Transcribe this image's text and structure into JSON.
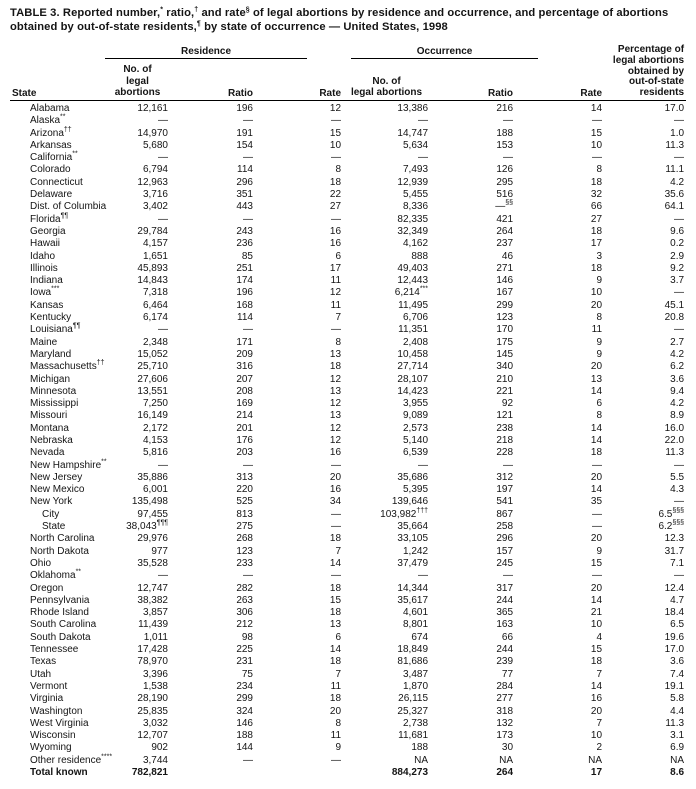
{
  "title": "TABLE 3. Reported number,^* ratio,^† and rate^§ of legal abortions by residence and occurrence, and percentage of abortions obtained by out-of-state residents,^¶ by state of occurrence — United States, 1998",
  "header": {
    "state": "State",
    "groups": [
      {
        "label": "Residence"
      },
      {
        "label": "Occurrence"
      }
    ],
    "sub": {
      "no_line1": "No. of",
      "no_line2": "legal abortions",
      "ratio": "Ratio",
      "rate": "Rate"
    },
    "pct": "Percentage of\nlegal abortions\nobtained by\nout-of-state\nresidents"
  },
  "rows": [
    {
      "state": "Alabama",
      "indent": false,
      "bold": false,
      "cells": [
        "12,161",
        "196",
        "12",
        "13,386",
        "216",
        "14",
        "17.0"
      ]
    },
    {
      "state": "Alaska^**",
      "indent": false,
      "bold": false,
      "cells": [
        "—",
        "—",
        "—",
        "—",
        "—",
        "—",
        "—"
      ]
    },
    {
      "state": "Arizona^††",
      "indent": false,
      "bold": false,
      "cells": [
        "14,970",
        "191",
        "15",
        "14,747",
        "188",
        "15",
        "1.0"
      ]
    },
    {
      "state": "Arkansas",
      "indent": false,
      "bold": false,
      "cells": [
        "5,680",
        "154",
        "10",
        "5,634",
        "153",
        "10",
        "11.3"
      ]
    },
    {
      "state": "California^**",
      "indent": false,
      "bold": false,
      "cells": [
        "—",
        "—",
        "—",
        "—",
        "—",
        "—",
        "—"
      ]
    },
    {
      "state": "Colorado",
      "indent": false,
      "bold": false,
      "cells": [
        "6,794",
        "114",
        "8",
        "7,493",
        "126",
        "8",
        "11.1"
      ]
    },
    {
      "state": "Connecticut",
      "indent": false,
      "bold": false,
      "cells": [
        "12,963",
        "296",
        "18",
        "12,939",
        "295",
        "18",
        "4.2"
      ]
    },
    {
      "state": "Delaware",
      "indent": false,
      "bold": false,
      "cells": [
        "3,716",
        "351",
        "22",
        "5,455",
        "516",
        "32",
        "35.6"
      ]
    },
    {
      "state": "Dist. of Columbia",
      "indent": false,
      "bold": false,
      "cells": [
        "3,402",
        "443",
        "27",
        "8,336",
        "—^§§",
        "66",
        "64.1"
      ]
    },
    {
      "state": "Florida^¶¶",
      "indent": false,
      "bold": false,
      "cells": [
        "—",
        "—",
        "—",
        "82,335",
        "421",
        "27",
        "—"
      ]
    },
    {
      "state": "Georgia",
      "indent": false,
      "bold": false,
      "cells": [
        "29,784",
        "243",
        "16",
        "32,349",
        "264",
        "18",
        "9.6"
      ]
    },
    {
      "state": "Hawaii",
      "indent": false,
      "bold": false,
      "cells": [
        "4,157",
        "236",
        "16",
        "4,162",
        "237",
        "17",
        "0.2"
      ]
    },
    {
      "state": "Idaho",
      "indent": false,
      "bold": false,
      "cells": [
        "1,651",
        "85",
        "6",
        "888",
        "46",
        "3",
        "2.9"
      ]
    },
    {
      "state": "Illinois",
      "indent": false,
      "bold": false,
      "cells": [
        "45,893",
        "251",
        "17",
        "49,403",
        "271",
        "18",
        "9.2"
      ]
    },
    {
      "state": "Indiana",
      "indent": false,
      "bold": false,
      "cells": [
        "14,843",
        "174",
        "11",
        "12,443",
        "146",
        "9",
        "3.7"
      ]
    },
    {
      "state": "Iowa^***",
      "indent": false,
      "bold": false,
      "cells": [
        "7,318",
        "196",
        "12",
        "6,214^***",
        "167",
        "10",
        "—"
      ]
    },
    {
      "state": "Kansas",
      "indent": false,
      "bold": false,
      "cells": [
        "6,464",
        "168",
        "11",
        "11,495",
        "299",
        "20",
        "45.1"
      ]
    },
    {
      "state": "Kentucky",
      "indent": false,
      "bold": false,
      "cells": [
        "6,174",
        "114",
        "7",
        "6,706",
        "123",
        "8",
        "20.8"
      ]
    },
    {
      "state": "Louisiana^¶¶",
      "indent": false,
      "bold": false,
      "cells": [
        "—",
        "—",
        "—",
        "11,351",
        "170",
        "11",
        "—"
      ]
    },
    {
      "state": "Maine",
      "indent": false,
      "bold": false,
      "cells": [
        "2,348",
        "171",
        "8",
        "2,408",
        "175",
        "9",
        "2.7"
      ]
    },
    {
      "state": "Maryland",
      "indent": false,
      "bold": false,
      "cells": [
        "15,052",
        "209",
        "13",
        "10,458",
        "145",
        "9",
        "4.2"
      ]
    },
    {
      "state": "Massachusetts^††",
      "indent": false,
      "bold": false,
      "cells": [
        "25,710",
        "316",
        "18",
        "27,714",
        "340",
        "20",
        "6.2"
      ]
    },
    {
      "state": "Michigan",
      "indent": false,
      "bold": false,
      "cells": [
        "27,606",
        "207",
        "12",
        "28,107",
        "210",
        "13",
        "3.6"
      ]
    },
    {
      "state": "Minnesota",
      "indent": false,
      "bold": false,
      "cells": [
        "13,551",
        "208",
        "13",
        "14,423",
        "221",
        "14",
        "9.4"
      ]
    },
    {
      "state": "Mississippi",
      "indent": false,
      "bold": false,
      "cells": [
        "7,250",
        "169",
        "12",
        "3,955",
        "92",
        "6",
        "4.2"
      ]
    },
    {
      "state": "Missouri",
      "indent": false,
      "bold": false,
      "cells": [
        "16,149",
        "214",
        "13",
        "9,089",
        "121",
        "8",
        "8.9"
      ]
    },
    {
      "state": "Montana",
      "indent": false,
      "bold": false,
      "cells": [
        "2,172",
        "201",
        "12",
        "2,573",
        "238",
        "14",
        "16.0"
      ]
    },
    {
      "state": "Nebraska",
      "indent": false,
      "bold": false,
      "cells": [
        "4,153",
        "176",
        "12",
        "5,140",
        "218",
        "14",
        "22.0"
      ]
    },
    {
      "state": "Nevada",
      "indent": false,
      "bold": false,
      "cells": [
        "5,816",
        "203",
        "16",
        "6,539",
        "228",
        "18",
        "11.3"
      ]
    },
    {
      "state": "New Hampshire^**",
      "indent": false,
      "bold": false,
      "cells": [
        "—",
        "—",
        "—",
        "—",
        "—",
        "—",
        "—"
      ]
    },
    {
      "state": "New Jersey",
      "indent": false,
      "bold": false,
      "cells": [
        "35,886",
        "313",
        "20",
        "35,686",
        "312",
        "20",
        "5.5"
      ]
    },
    {
      "state": "New Mexico",
      "indent": false,
      "bold": false,
      "cells": [
        "6,001",
        "220",
        "16",
        "5,395",
        "197",
        "14",
        "4.3"
      ]
    },
    {
      "state": "New York",
      "indent": false,
      "bold": false,
      "cells": [
        "135,498",
        "525",
        "34",
        "139,646",
        "541",
        "35",
        "—"
      ]
    },
    {
      "state": "City",
      "indent": true,
      "bold": false,
      "cells": [
        "97,455",
        "813",
        "—",
        "103,982^†††",
        "867",
        "—",
        "6.5^§§§"
      ]
    },
    {
      "state": "State",
      "indent": true,
      "bold": false,
      "cells": [
        "38,043^¶¶¶",
        "275",
        "—",
        "35,664",
        "258",
        "—",
        "6.2^§§§"
      ]
    },
    {
      "state": "North Carolina",
      "indent": false,
      "bold": false,
      "cells": [
        "29,976",
        "268",
        "18",
        "33,105",
        "296",
        "20",
        "12.3"
      ]
    },
    {
      "state": "North Dakota",
      "indent": false,
      "bold": false,
      "cells": [
        "977",
        "123",
        "7",
        "1,242",
        "157",
        "9",
        "31.7"
      ]
    },
    {
      "state": "Ohio",
      "indent": false,
      "bold": false,
      "cells": [
        "35,528",
        "233",
        "14",
        "37,479",
        "245",
        "15",
        "7.1"
      ]
    },
    {
      "state": "Oklahoma^**",
      "indent": false,
      "bold": false,
      "cells": [
        "—",
        "—",
        "—",
        "—",
        "—",
        "—",
        "—"
      ]
    },
    {
      "state": "Oregon",
      "indent": false,
      "bold": false,
      "cells": [
        "12,747",
        "282",
        "18",
        "14,344",
        "317",
        "20",
        "12.4"
      ]
    },
    {
      "state": "Pennsylvania",
      "indent": false,
      "bold": false,
      "cells": [
        "38,382",
        "263",
        "15",
        "35,617",
        "244",
        "14",
        "4.7"
      ]
    },
    {
      "state": "Rhode Island",
      "indent": false,
      "bold": false,
      "cells": [
        "3,857",
        "306",
        "18",
        "4,601",
        "365",
        "21",
        "18.4"
      ]
    },
    {
      "state": "South Carolina",
      "indent": false,
      "bold": false,
      "cells": [
        "11,439",
        "212",
        "13",
        "8,801",
        "163",
        "10",
        "6.5"
      ]
    },
    {
      "state": "South Dakota",
      "indent": false,
      "bold": false,
      "cells": [
        "1,011",
        "98",
        "6",
        "674",
        "66",
        "4",
        "19.6"
      ]
    },
    {
      "state": "Tennessee",
      "indent": false,
      "bold": false,
      "cells": [
        "17,428",
        "225",
        "14",
        "18,849",
        "244",
        "15",
        "17.0"
      ]
    },
    {
      "state": "Texas",
      "indent": false,
      "bold": false,
      "cells": [
        "78,970",
        "231",
        "18",
        "81,686",
        "239",
        "18",
        "3.6"
      ]
    },
    {
      "state": "Utah",
      "indent": false,
      "bold": false,
      "cells": [
        "3,396",
        "75",
        "7",
        "3,487",
        "77",
        "7",
        "7.4"
      ]
    },
    {
      "state": "Vermont",
      "indent": false,
      "bold": false,
      "cells": [
        "1,538",
        "234",
        "11",
        "1,870",
        "284",
        "14",
        "19.1"
      ]
    },
    {
      "state": "Virginia",
      "indent": false,
      "bold": false,
      "cells": [
        "28,190",
        "299",
        "18",
        "26,115",
        "277",
        "16",
        "5.8"
      ]
    },
    {
      "state": "Washington",
      "indent": false,
      "bold": false,
      "cells": [
        "25,835",
        "324",
        "20",
        "25,327",
        "318",
        "20",
        "4.4"
      ]
    },
    {
      "state": "West Virginia",
      "indent": false,
      "bold": false,
      "cells": [
        "3,032",
        "146",
        "8",
        "2,738",
        "132",
        "7",
        "11.3"
      ]
    },
    {
      "state": "Wisconsin",
      "indent": false,
      "bold": false,
      "cells": [
        "12,707",
        "188",
        "11",
        "11,681",
        "173",
        "10",
        "3.1"
      ]
    },
    {
      "state": "Wyoming",
      "indent": false,
      "bold": false,
      "cells": [
        "902",
        "144",
        "9",
        "188",
        "30",
        "2",
        "6.9"
      ]
    },
    {
      "state": "Other residence^****",
      "indent": false,
      "bold": false,
      "cells": [
        "3,744",
        "—",
        "—",
        "NA",
        "NA",
        "NA",
        "NA"
      ]
    },
    {
      "state": "Total known",
      "indent": false,
      "bold": true,
      "cells": [
        "782,821",
        "",
        "",
        "884,273",
        "264",
        "17",
        "8.6"
      ]
    }
  ]
}
